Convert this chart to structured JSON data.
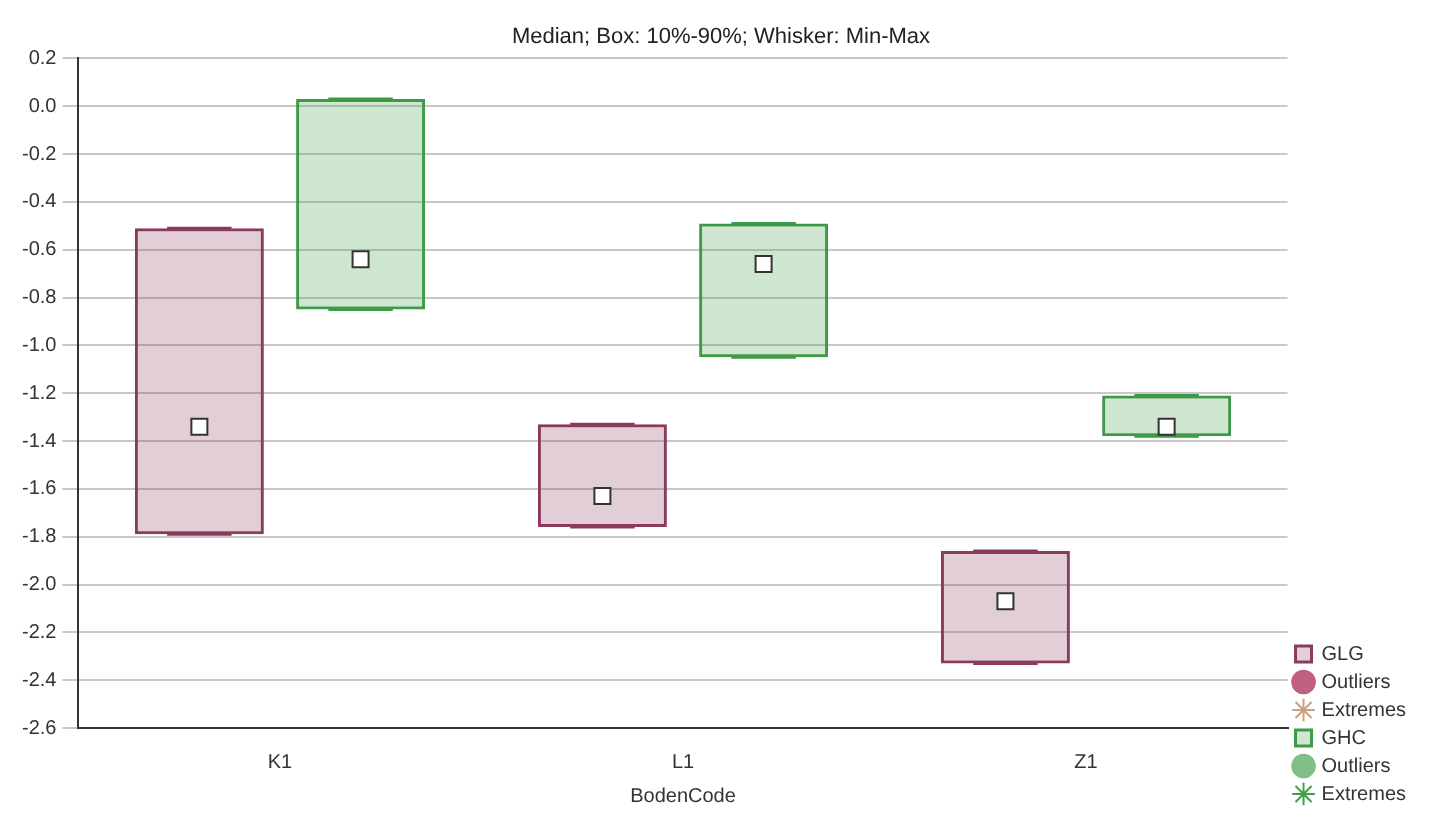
{
  "chart_data": {
    "type": "box",
    "title": "Median; Box: 10%-90%; Whisker: Min-Max",
    "xlabel": "BodenCode",
    "categories": [
      "K1",
      "L1",
      "Z1"
    ],
    "series": [
      {
        "name": "GLG",
        "type": "box",
        "color": "#8b3a5e",
        "boxes": [
          {
            "low": -1.79,
            "q1": -1.79,
            "median": -1.34,
            "q3": -0.51,
            "high": -0.51
          },
          {
            "low": -1.76,
            "q1": -1.76,
            "median": -1.63,
            "q3": -1.33,
            "high": -1.33
          },
          {
            "low": -2.33,
            "q1": -2.33,
            "median": -2.07,
            "q3": -1.86,
            "high": -1.86
          }
        ]
      },
      {
        "name": "Outliers",
        "type": "scatter",
        "color": "#c06080",
        "marker": "circle",
        "values": [
          null,
          null,
          null
        ]
      },
      {
        "name": "Extremes",
        "type": "scatter",
        "color": "#c8a080",
        "marker": "star",
        "values": [
          null,
          null,
          null
        ]
      },
      {
        "name": "GHC",
        "type": "box",
        "color": "#3f9a48",
        "boxes": [
          {
            "low": -0.85,
            "q1": -0.85,
            "median": -0.64,
            "q3": 0.03,
            "high": 0.03
          },
          {
            "low": -1.05,
            "q1": -1.05,
            "median": -0.66,
            "q3": -0.49,
            "high": -0.49
          },
          {
            "low": -1.38,
            "q1": -1.38,
            "median": -1.34,
            "q3": -1.21,
            "high": -1.21
          }
        ]
      },
      {
        "name": "Outliers",
        "type": "scatter",
        "color": "#80c088",
        "marker": "circle",
        "values": [
          null,
          null,
          null
        ]
      },
      {
        "name": "Extremes",
        "type": "scatter",
        "color": "#40a048",
        "marker": "star",
        "values": [
          null,
          null,
          null
        ]
      }
    ],
    "ylim": [
      -2.6,
      0.2
    ],
    "yticks": [
      {
        "value": 0.2,
        "label": "0.2"
      },
      {
        "value": 0,
        "label": "0.0"
      },
      {
        "value": -0.2,
        "label": "-0.2"
      },
      {
        "value": -0.4,
        "label": "-0.4"
      },
      {
        "value": -0.6,
        "label": "-0.6"
      },
      {
        "value": -0.8,
        "label": "-0.8"
      },
      {
        "value": -1,
        "label": "-1.0"
      },
      {
        "value": -1.2,
        "label": "-1.2"
      },
      {
        "value": -1.4,
        "label": "-1.4"
      },
      {
        "value": -1.6,
        "label": "-1.6"
      },
      {
        "value": -1.8,
        "label": "-1.8"
      },
      {
        "value": -2,
        "label": "-2.0"
      },
      {
        "value": -2.2,
        "label": "-2.2"
      },
      {
        "value": -2.4,
        "label": "-2.4"
      },
      {
        "value": -2.6,
        "label": "-2.6"
      }
    ],
    "grid": "y",
    "legend": "bottom right"
  }
}
